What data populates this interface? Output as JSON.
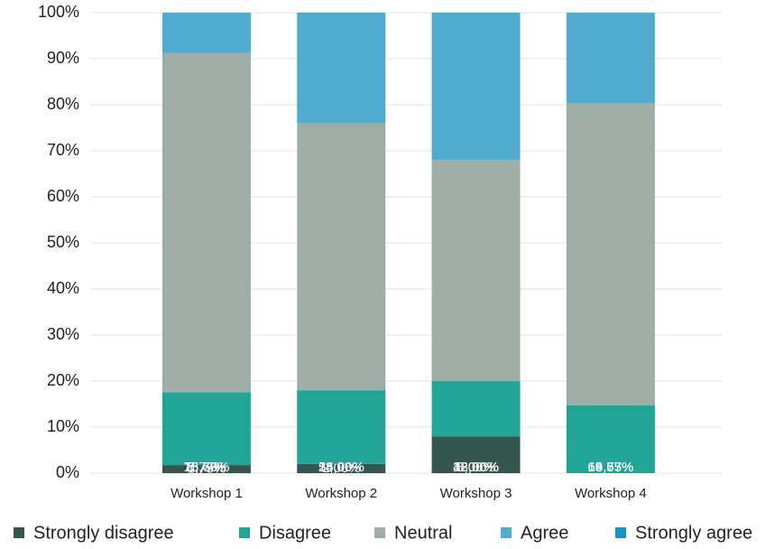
{
  "chart_data": {
    "type": "stacked_bar",
    "categories": [
      "Workshop 1",
      "Workshop 2",
      "Workshop 3",
      "Workshop 4"
    ],
    "series": [
      {
        "name": "Strongly disagree",
        "color": "#35564f",
        "values": [
          1.75,
          2.0,
          8.0,
          0
        ],
        "value_labels": [
          "1,75%",
          "2,00%",
          "8,00%",
          null
        ]
      },
      {
        "name": "Disagree",
        "color": "#22a597",
        "values": [
          15.79,
          16.0,
          12.0,
          14.75
        ],
        "value_labels": [
          "15,79%",
          "16,00%",
          "12,00%",
          "14,75%"
        ]
      },
      {
        "name": "Neutral",
        "color": "#9eada6",
        "values": [
          73.68,
          58.0,
          48.0,
          65.57
        ],
        "value_labels": [
          "73,68%",
          "58,00%",
          "48,00%",
          "65,57%"
        ]
      },
      {
        "name": "Agree",
        "color": "#4fabd0",
        "values": [
          8.77,
          24.0,
          32.0,
          19.67
        ],
        "value_labels": [
          "8,77%",
          "24,00%",
          "32,00%",
          "19,67%"
        ]
      },
      {
        "name": "Strongly agree",
        "color": "#1b93c4",
        "values": [
          0,
          0,
          0,
          0
        ]
      }
    ],
    "ylim": [
      0,
      100
    ],
    "yticks": [
      {
        "value": 0,
        "label": "0%"
      },
      {
        "value": 10,
        "label": "10%"
      },
      {
        "value": 20,
        "label": "20%"
      },
      {
        "value": 30,
        "label": "30%"
      },
      {
        "value": 40,
        "label": "40%"
      },
      {
        "value": 50,
        "label": "50%"
      },
      {
        "value": 60,
        "label": "60%"
      },
      {
        "value": 70,
        "label": "70%"
      },
      {
        "value": 80,
        "label": "80%"
      },
      {
        "value": 90,
        "label": "90%"
      },
      {
        "value": 100,
        "label": "100%"
      }
    ],
    "grid": true,
    "legend": "bottom"
  }
}
